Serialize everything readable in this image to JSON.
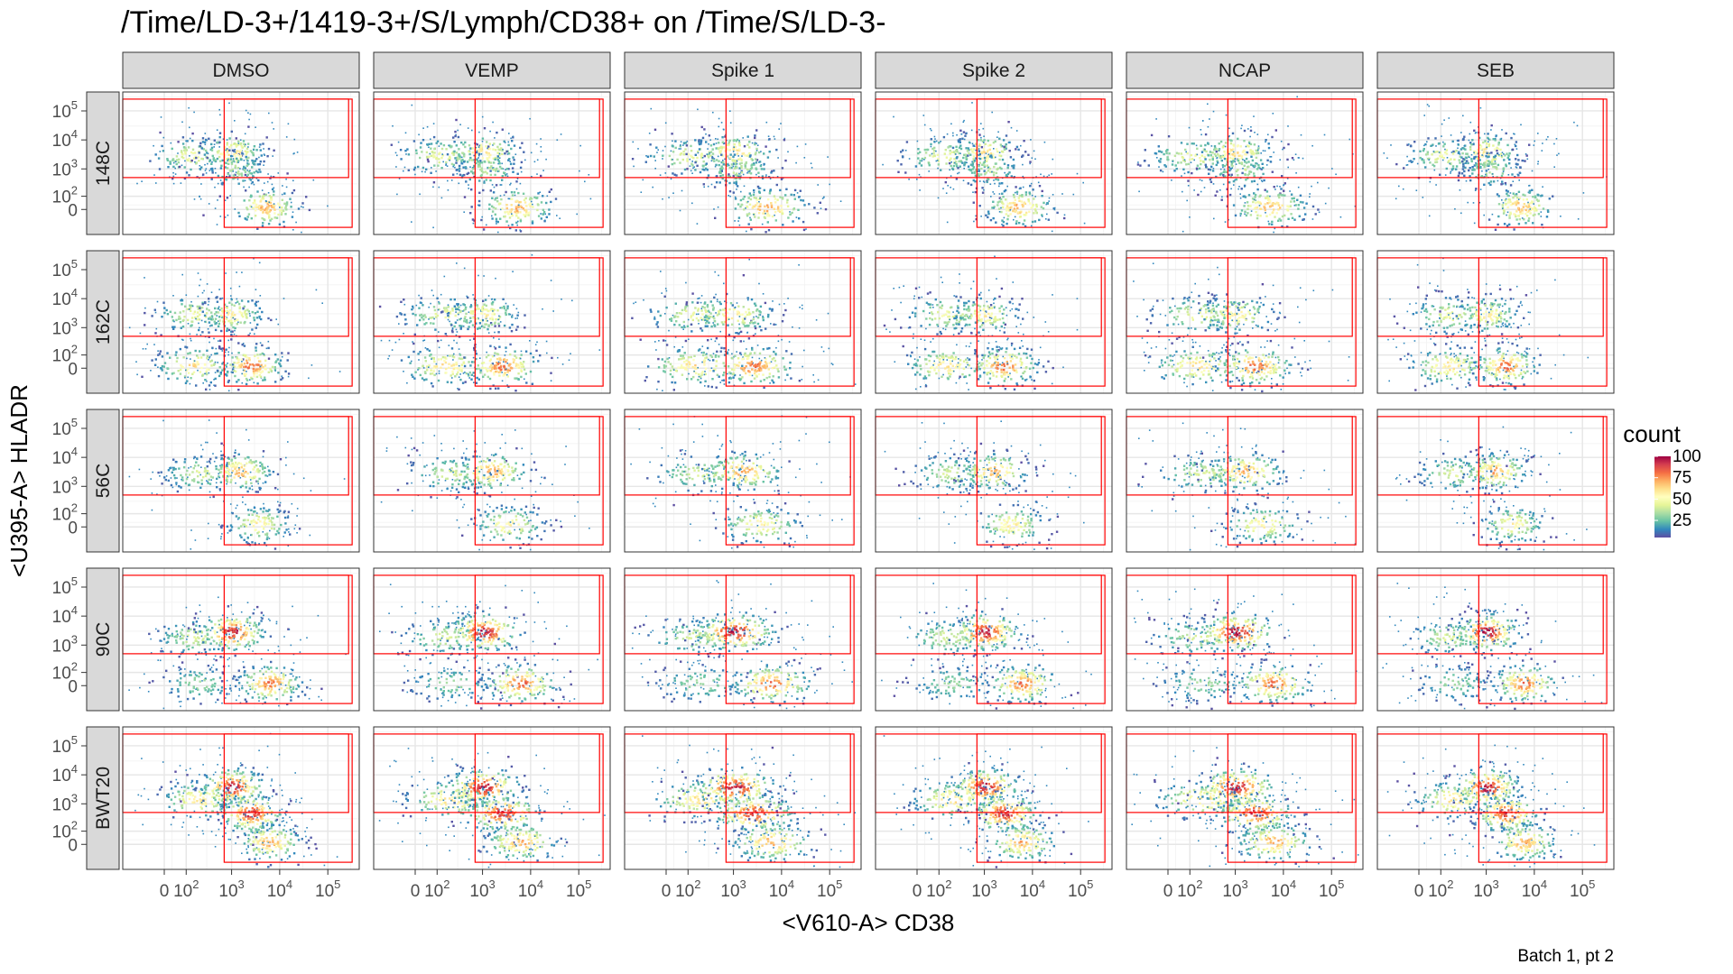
{
  "chart_data": {
    "type": "heatmap",
    "title": "/Time/LD-3+/1419-3+/S/Lymph/CD38+ on /Time/S/LD-3-",
    "xlabel": "<V610-A> CD38",
    "ylabel": "<U395-A> HLADR",
    "caption": "Batch 1, pt 2",
    "columns": [
      "DMSO",
      "VEMP",
      "Spike 1",
      "Spike 2",
      "NCAP",
      "SEB"
    ],
    "rows": [
      "148C",
      "162C",
      "56C",
      "90C",
      "BWT20"
    ],
    "x_ticks": [
      {
        "base": "0",
        "exp": "",
        "value": 0
      },
      {
        "base": "10",
        "exp": "2",
        "value": 100
      },
      {
        "base": "10",
        "exp": "3",
        "value": 1000
      },
      {
        "base": "10",
        "exp": "4",
        "value": 10000
      },
      {
        "base": "10",
        "exp": "5",
        "value": 100000
      }
    ],
    "y_ticks": [
      {
        "base": "0",
        "exp": "",
        "value": 0
      },
      {
        "base": "10",
        "exp": "2",
        "value": 100
      },
      {
        "base": "10",
        "exp": "3",
        "value": 1000
      },
      {
        "base": "10",
        "exp": "4",
        "value": 10000
      },
      {
        "base": "10",
        "exp": "5",
        "value": 100000
      }
    ],
    "scale": "biexponential",
    "grid": true,
    "legend": {
      "title": "count",
      "ticks": [
        25,
        50,
        75,
        100
      ],
      "palette": [
        "#5e4fa2",
        "#3288bd",
        "#66c2a5",
        "#abdda4",
        "#e6f598",
        "#ffffbf",
        "#fee08b",
        "#fdae61",
        "#f46d43",
        "#d53e4f",
        "#9e0142"
      ],
      "placement": "right"
    },
    "gates": {
      "color": "#ff0000",
      "x_threshold": 700,
      "y_threshold": 500
    },
    "populations_by_row": {
      "148C": [
        {
          "x": 120,
          "y": 3000,
          "weight": 0.45
        },
        {
          "x": 1000,
          "y": 4000,
          "weight": 0.6
        },
        {
          "x": 1200,
          "y": 1000,
          "weight": 0.35
        },
        {
          "x": 5000,
          "y": 20,
          "weight": 0.7
        }
      ],
      "162C": [
        {
          "x": 150,
          "y": 3000,
          "weight": 0.45
        },
        {
          "x": 1000,
          "y": 3000,
          "weight": 0.55
        },
        {
          "x": 150,
          "y": 20,
          "weight": 0.6
        },
        {
          "x": 2500,
          "y": 20,
          "weight": 0.8
        }
      ],
      "56C": [
        {
          "x": 200,
          "y": 3000,
          "weight": 0.4
        },
        {
          "x": 1500,
          "y": 3500,
          "weight": 0.7
        },
        {
          "x": 3500,
          "y": 20,
          "weight": 0.55
        }
      ],
      "90C": [
        {
          "x": 150,
          "y": 2000,
          "weight": 0.4
        },
        {
          "x": 1000,
          "y": 3000,
          "weight": 0.95
        },
        {
          "x": 200,
          "y": 20,
          "weight": 0.3
        },
        {
          "x": 6000,
          "y": 20,
          "weight": 0.8
        }
      ],
      "BWT20": [
        {
          "x": 200,
          "y": 1500,
          "weight": 0.6
        },
        {
          "x": 1000,
          "y": 4000,
          "weight": 0.95
        },
        {
          "x": 2500,
          "y": 500,
          "weight": 0.9
        },
        {
          "x": 6000,
          "y": 20,
          "weight": 0.7
        }
      ]
    }
  }
}
